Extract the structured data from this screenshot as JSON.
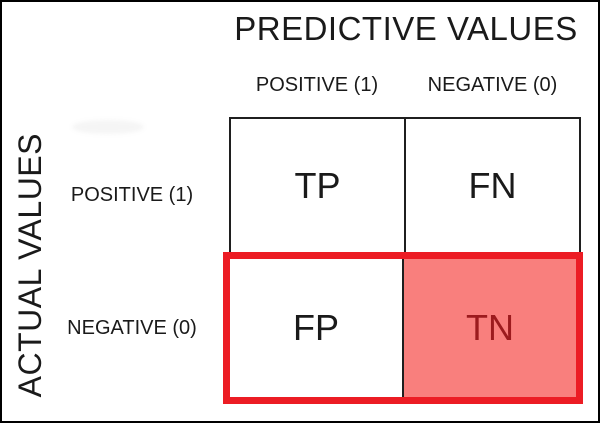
{
  "title": "PREDICTIVE VALUES",
  "side_title": "ACTUAL VALUES",
  "columns": {
    "positive": "POSITIVE (1)",
    "negative": "NEGATIVE (0)"
  },
  "rows": {
    "positive": "POSITIVE (1)",
    "negative": "NEGATIVE (0)"
  },
  "cells": {
    "tp": "TP",
    "fn": "FN",
    "fp": "FP",
    "tn": "TN"
  },
  "colors": {
    "highlight_red": "#EC1C24",
    "tn_background": "#F97F7D",
    "tn_text": "#9C1B1E"
  }
}
